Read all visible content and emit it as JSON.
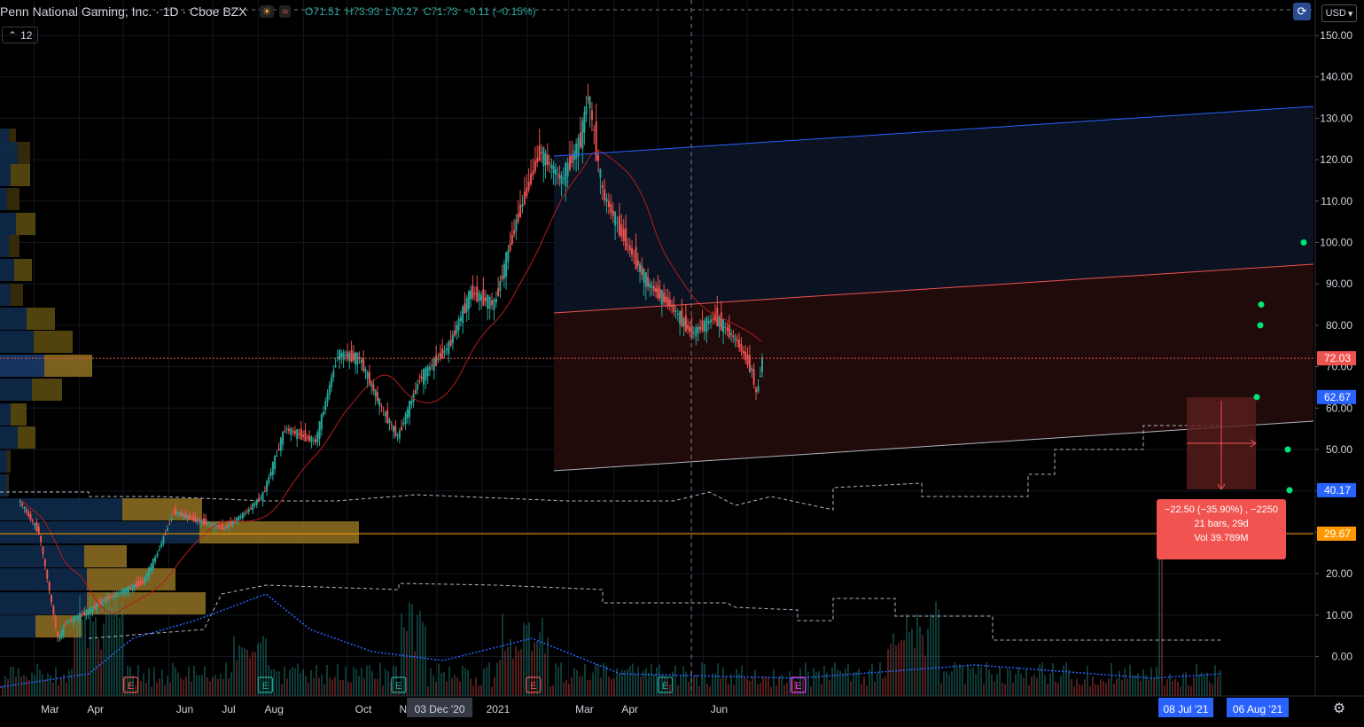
{
  "header": {
    "title": "Penn National Gaming, Inc. · 1D · Cboe BZX",
    "open": "O71.51",
    "high": "H73.93",
    "low": "L70.27",
    "close": "C71.73",
    "change": "−0.11 (−0.15%)",
    "indicator_count": "12"
  },
  "toolbar": {
    "currency": "USD",
    "currency_icon": "chevron-down-icon",
    "compare_icon": "compare-icon",
    "settings_icon": "gear-icon"
  },
  "colors": {
    "up": "#26a69a",
    "down": "#ef5350",
    "price_line": "#ef5350",
    "support_line": "#ff9800",
    "upper_channel": "#2962ff",
    "blue_zone": "#0b1222",
    "red_zone": "#200a0a"
  },
  "measure_tooltip": {
    "line1": "−22.50 (−35.90%) , −2250",
    "line2": "21 bars, 29d",
    "line3": "Vol 39.789M"
  },
  "chart_data": {
    "type": "candlestick",
    "symbol": "Penn National Gaming, Inc.",
    "interval": "1D",
    "exchange": "Cboe BZX",
    "y_axis": {
      "ticks": [
        "150.00",
        "140.00",
        "130.00",
        "120.00",
        "110.00",
        "100.00",
        "90.00",
        "80.00",
        "70.00",
        "60.00",
        "50.00",
        "40.00",
        "30.00",
        "20.00",
        "10.00",
        "0.00"
      ],
      "range": [
        -10,
        154
      ]
    },
    "x_axis": {
      "ticks": [
        "Mar",
        "Apr",
        "Jun",
        "Jul",
        "Aug",
        "Oct",
        "Nov",
        "2021",
        "Mar",
        "Apr",
        "Jun"
      ],
      "crosshair_label": "03 Dec '20",
      "range_start_label": "08 Jul '21",
      "range_end_label": "06 Aug '21"
    },
    "price_labels": [
      {
        "text": "72.03",
        "value": 72.03,
        "color": "#ef5350"
      },
      {
        "text": "62.67",
        "value": 62.67,
        "color": "#2962ff"
      },
      {
        "text": "40.17",
        "value": 40.17,
        "color": "#2962ff"
      },
      {
        "text": "29.67",
        "value": 29.67,
        "color": "#ff9800"
      }
    ],
    "price_path": [
      [
        "2020-02-20",
        38
      ],
      [
        "2020-03-05",
        30
      ],
      [
        "2020-03-18",
        4
      ],
      [
        "2020-03-23",
        8
      ],
      [
        "2020-04-08",
        11
      ],
      [
        "2020-04-20",
        14
      ],
      [
        "2020-05-15",
        18
      ],
      [
        "2020-05-25",
        25
      ],
      [
        "2020-06-05",
        35
      ],
      [
        "2020-06-20",
        33
      ],
      [
        "2020-07-10",
        31
      ],
      [
        "2020-07-25",
        35
      ],
      [
        "2020-08-05",
        39
      ],
      [
        "2020-08-20",
        55
      ],
      [
        "2020-09-10",
        52
      ],
      [
        "2020-09-25",
        73
      ],
      [
        "2020-10-10",
        72
      ],
      [
        "2020-10-25",
        60
      ],
      [
        "2020-11-05",
        53
      ],
      [
        "2020-11-20",
        67
      ],
      [
        "2020-12-10",
        75
      ],
      [
        "2020-12-25",
        88
      ],
      [
        "2021-01-10",
        85
      ],
      [
        "2021-01-25",
        105
      ],
      [
        "2021-02-10",
        122
      ],
      [
        "2021-02-25",
        115
      ],
      [
        "2021-03-10",
        125
      ],
      [
        "2021-03-15",
        136
      ],
      [
        "2021-03-25",
        112
      ],
      [
        "2021-04-10",
        100
      ],
      [
        "2021-04-25",
        90
      ],
      [
        "2021-05-10",
        85
      ],
      [
        "2021-05-25",
        78
      ],
      [
        "2021-06-10",
        82
      ],
      [
        "2021-06-25",
        76
      ],
      [
        "2021-07-05",
        69
      ],
      [
        "2021-07-08",
        63
      ],
      [
        "2021-07-12",
        72
      ]
    ],
    "events": [
      {
        "label": "E",
        "date": "2020-05-06",
        "color": "#ef5350"
      },
      {
        "label": "E",
        "date": "2020-08-06",
        "color": "#26a69a"
      },
      {
        "label": "E",
        "date": "2020-11-05",
        "color": "#26a69a"
      },
      {
        "label": "E",
        "date": "2021-02-05",
        "color": "#ef5350"
      },
      {
        "label": "E",
        "date": "2021-05-06",
        "color": "#26a69a"
      },
      {
        "label": "E",
        "date": "2021-08-05",
        "color": "#e040fb"
      }
    ],
    "grid": true
  }
}
